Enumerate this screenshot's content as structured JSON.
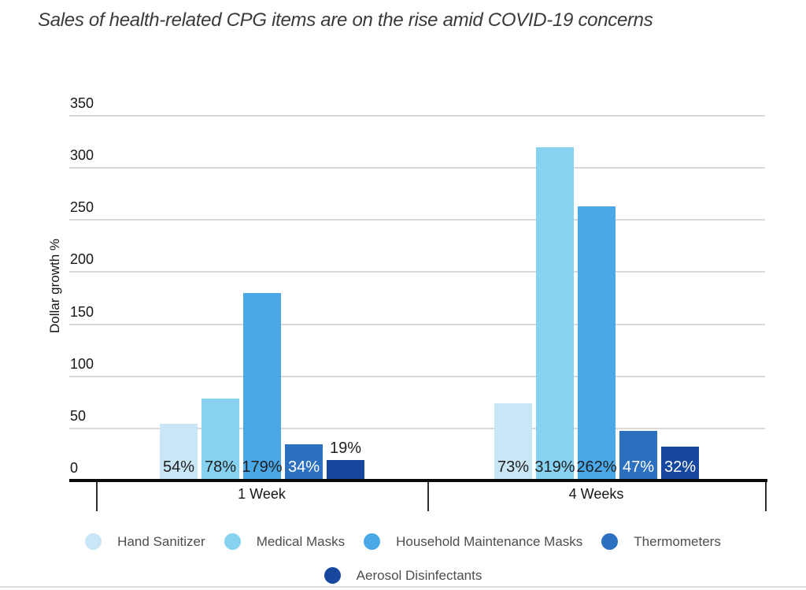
{
  "title": "Sales of health-related CPG items are on the rise amid COVID-19 concerns",
  "chart_data": {
    "type": "bar",
    "title": "Sales of health-related CPG items are on the rise amid COVID-19 concerns",
    "xlabel": "",
    "ylabel": "Dollar growth %",
    "ylim": [
      0,
      350
    ],
    "ytick_step": 50,
    "yticks": [
      0,
      50,
      100,
      150,
      200,
      250,
      300,
      350
    ],
    "grid": true,
    "legend_position": "bottom",
    "categories": [
      "1 Week",
      "4 Weeks"
    ],
    "series": [
      {
        "name": "Hand Sanitizer",
        "color": "#C9E6F6",
        "value_text_color": "#1e1e1e",
        "values": [
          54,
          73
        ],
        "labels": [
          "54%",
          "73%"
        ]
      },
      {
        "name": "Medical Masks",
        "color": "#87D1F1",
        "value_text_color": "#1e1e1e",
        "values": [
          78,
          319
        ],
        "labels": [
          "78%",
          "319%"
        ]
      },
      {
        "name": "Household Maintenance Masks",
        "color": "#4AA8E8",
        "value_text_color": "#1e1e1e",
        "values": [
          179,
          262
        ],
        "labels": [
          "179%",
          "262%"
        ]
      },
      {
        "name": "Thermometers",
        "color": "#2C70C0",
        "value_text_color": "#ffffff",
        "values": [
          34,
          47
        ],
        "labels": [
          "34%",
          "47%"
        ]
      },
      {
        "name": "Aerosol Disinfectants",
        "color": "#17479E",
        "value_text_color": "#ffffff",
        "values": [
          19,
          32
        ],
        "labels": [
          "19%",
          "32%"
        ]
      }
    ],
    "legend_rows": [
      [
        0,
        1,
        2,
        3
      ],
      [
        4
      ]
    ]
  },
  "colors": {
    "background": "#ffffff",
    "gridline": "#d9d9d9",
    "axis": "#0b0b0b",
    "text": "#161616",
    "legend_text": "#4d4d4d",
    "title_text": "#3a3a3a",
    "outside_label_text": "#1e1e1e"
  }
}
